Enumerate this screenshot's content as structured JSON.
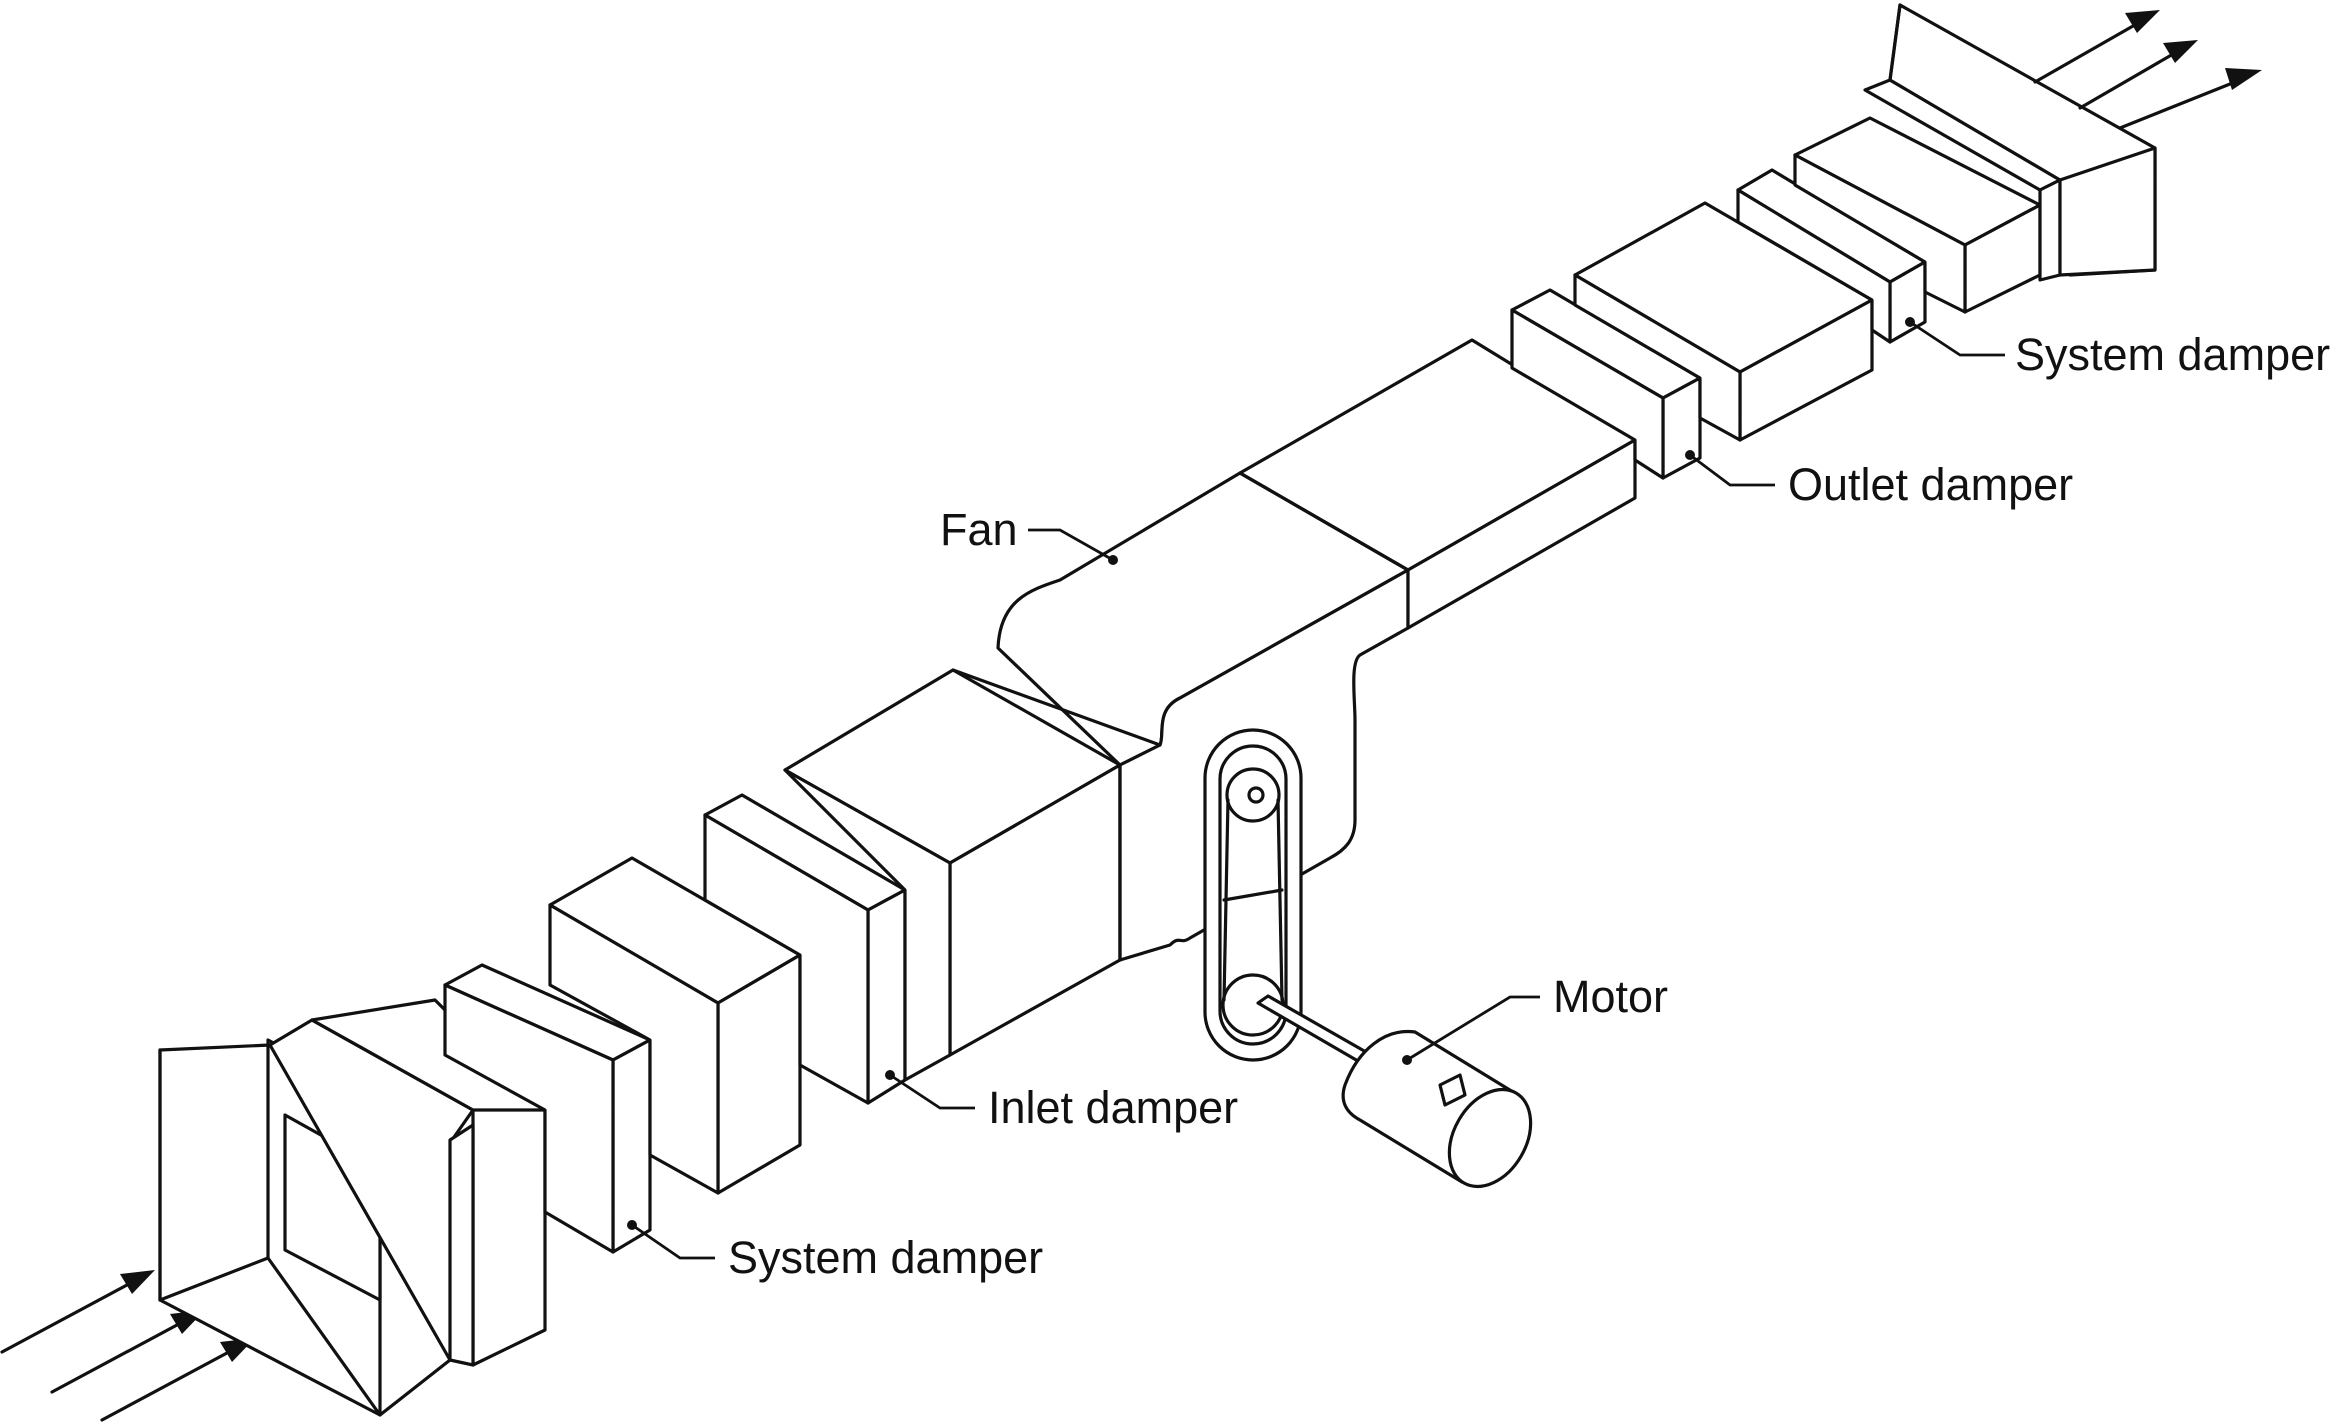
{
  "labels": {
    "fan": "Fan",
    "outlet_damper": "Outlet damper",
    "system_damper_outlet": "System damper",
    "motor": "Motor",
    "inlet_damper": "Inlet damper",
    "system_damper_inlet": "System damper"
  },
  "colors": {
    "line": "#111111",
    "background": "#ffffff"
  }
}
